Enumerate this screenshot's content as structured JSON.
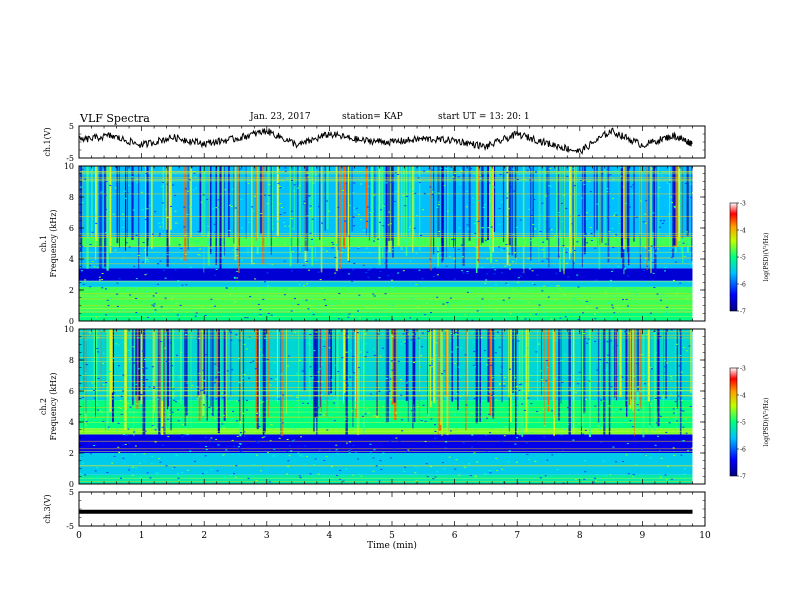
{
  "header": {
    "title": "VLF Spectra",
    "date": "Jan. 23, 2017",
    "station": "station= KAP",
    "start": "start UT =  13: 20: 1"
  },
  "chart_data": [
    {
      "type": "line",
      "panel": "ch1_waveform",
      "ylabel": "ch.1(V)",
      "ylim": [
        -5,
        5
      ],
      "yticks": [
        "5",
        "-5"
      ],
      "x_range_min": [
        0,
        10
      ],
      "data_extent_min": [
        0,
        9.8
      ],
      "series": [
        {
          "x": [
            0,
            0.5,
            1,
            1.5,
            2,
            2.5,
            3,
            3.5,
            4,
            4.5,
            5,
            5.5,
            6,
            6.5,
            7,
            7.5,
            8,
            8.5,
            9,
            9.5,
            9.8
          ],
          "values": [
            0.5,
            2,
            -1,
            1.5,
            -0.5,
            1,
            3.5,
            -1,
            2.5,
            0.5,
            0,
            1,
            0.5,
            -1.5,
            2.5,
            -0.5,
            -3,
            3.5,
            -1,
            2,
            -0.5
          ]
        }
      ],
      "color": "#000000"
    },
    {
      "type": "heatmap",
      "panel": "ch1_spectrogram",
      "ylabel": "ch.1\nFrequency (kHz)",
      "ylabel_lines": [
        "ch.1",
        "Frequency (kHz)"
      ],
      "ylim": [
        0,
        10
      ],
      "yticks": [
        "0",
        "2",
        "4",
        "6",
        "8",
        "10"
      ],
      "x_range_min": [
        0,
        10
      ],
      "data_extent_min": [
        0,
        9.8
      ],
      "colorbar": {
        "label": "log(PSD)(V²/Hz)",
        "range": [
          -7,
          -3
        ],
        "ticks": [
          "-3",
          "-4",
          "-5",
          "-6",
          "-7"
        ]
      },
      "bands": [
        {
          "freq_range_khz": [
            0,
            0.6
          ],
          "log_psd": -5.0
        },
        {
          "freq_range_khz": [
            0.6,
            2.2
          ],
          "log_psd": -4.8
        },
        {
          "freq_range_khz": [
            2.2,
            2.6
          ],
          "log_psd": -5.5
        },
        {
          "freq_range_khz": [
            2.6,
            3.4
          ],
          "log_psd": -6.6
        },
        {
          "freq_range_khz": [
            3.4,
            4.8
          ],
          "log_psd": -5.6
        },
        {
          "freq_range_khz": [
            4.8,
            5.4
          ],
          "log_psd": -4.8
        },
        {
          "freq_range_khz": [
            5.4,
            10
          ],
          "log_psd": -5.6
        }
      ]
    },
    {
      "type": "heatmap",
      "panel": "ch2_spectrogram",
      "ylabel": "ch.2\nFrequency (kHz)",
      "ylabel_lines": [
        "ch.2",
        "Frequency (kHz)"
      ],
      "ylim": [
        0,
        10
      ],
      "yticks": [
        "0",
        "2",
        "4",
        "6",
        "8",
        "10"
      ],
      "x_range_min": [
        0,
        10
      ],
      "data_extent_min": [
        0,
        9.8
      ],
      "colorbar": {
        "label": "log(PSD)(V²/Hz)",
        "range": [
          -7,
          -3
        ],
        "ticks": [
          "-3",
          "-4",
          "-5",
          "-6",
          "-7"
        ]
      },
      "bands": [
        {
          "freq_range_khz": [
            0,
            0.6
          ],
          "log_psd": -5.2
        },
        {
          "freq_range_khz": [
            0.6,
            2.0
          ],
          "log_psd": -5.5
        },
        {
          "freq_range_khz": [
            2.0,
            3.2
          ],
          "log_psd": -6.5
        },
        {
          "freq_range_khz": [
            3.2,
            3.6
          ],
          "log_psd": -4.6
        },
        {
          "freq_range_khz": [
            3.6,
            5.4
          ],
          "log_psd": -5.0
        },
        {
          "freq_range_khz": [
            5.4,
            10
          ],
          "log_psd": -5.4
        }
      ]
    },
    {
      "type": "line",
      "panel": "ch3_waveform",
      "ylabel": "ch.3(V)",
      "ylim": [
        -5,
        5
      ],
      "yticks": [
        "5",
        "-5"
      ],
      "xlabel": "Time (min)",
      "xticks": [
        "0",
        "1",
        "2",
        "3",
        "4",
        "5",
        "6",
        "7",
        "8",
        "9",
        "10"
      ],
      "x_range_min": [
        0,
        10
      ],
      "data_extent_min": [
        0,
        9.8
      ],
      "series": [
        {
          "x": [
            0,
            9.8
          ],
          "values": [
            -0.8,
            -0.8
          ]
        }
      ],
      "color": "#000000"
    }
  ],
  "colors": {
    "frame": "#000000",
    "colormap": [
      "#00008a",
      "#0000ff",
      "#00a0ff",
      "#00ffff",
      "#40ff80",
      "#c0ff00",
      "#ffff00",
      "#ff8000",
      "#ff0000",
      "#ffffff"
    ]
  }
}
